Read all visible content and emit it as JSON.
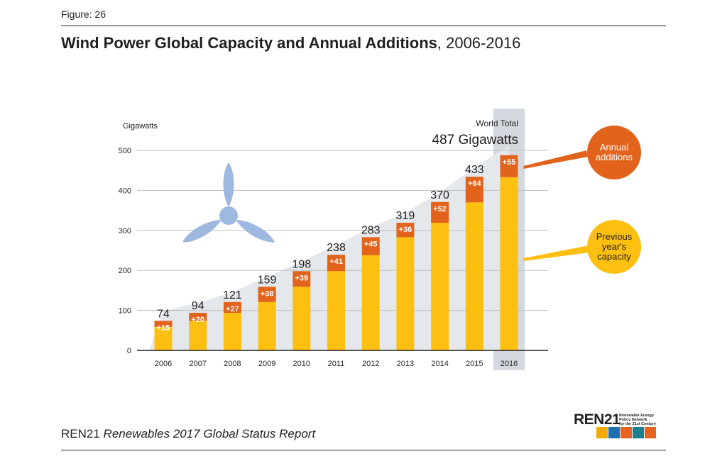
{
  "header": {
    "figure_label": "Figure: 26",
    "title_bold": "Wind Power Global Capacity and Annual Additions",
    "title_rest": ", 2006-2016"
  },
  "footer": {
    "org": "REN21",
    "report": "Renewables 2017 Global Status Report"
  },
  "logo": {
    "wordmark": "REN21",
    "tagline_1": "Renewable Energy",
    "tagline_2": "Policy Network",
    "tagline_3": "for the 21st Century",
    "icon_colors": [
      "#f5a800",
      "#1f6fb4",
      "#e8641e",
      "#1c7f8f",
      "#e8641e"
    ]
  },
  "colors": {
    "previous": "#fec010",
    "additions": "#e2631b",
    "wedge": "#e4e7eb",
    "highlight": "#d3d9df",
    "grid": "#bfbfbf",
    "turbine": "#9fb8e0"
  },
  "chart_data": {
    "type": "bar",
    "stacked": true,
    "ylabel": "Gigawatts",
    "ylim": [
      0,
      500
    ],
    "yticks": [
      0,
      100,
      200,
      300,
      400,
      500
    ],
    "categories": [
      "2006",
      "2007",
      "2008",
      "2009",
      "2010",
      "2011",
      "2012",
      "2013",
      "2014",
      "2015",
      "2016"
    ],
    "series": [
      {
        "name": "Previous year's capacity",
        "values": [
          59,
          74,
          94,
          121,
          159,
          198,
          238,
          283,
          319,
          370,
          433
        ]
      },
      {
        "name": "Annual additions",
        "values": [
          15,
          20,
          27,
          38,
          39,
          41,
          45,
          36,
          52,
          64,
          55
        ]
      }
    ],
    "totals": [
      74,
      94,
      121,
      159,
      198,
      238,
      283,
      319,
      370,
      433,
      487
    ],
    "addition_labels": [
      "+15",
      "+20",
      "+27",
      "+38",
      "+39",
      "+41",
      "+45",
      "+36",
      "+52",
      "+64",
      "+55"
    ],
    "highlight_category": "2016",
    "world_total_label": "World Total",
    "world_total_value": "487 Gigawatts",
    "callouts": {
      "additions": [
        "Annual",
        "additions"
      ],
      "previous": [
        "Previous",
        "year's",
        "capacity"
      ]
    },
    "grid": true,
    "legend": "callout bubbles at right"
  }
}
